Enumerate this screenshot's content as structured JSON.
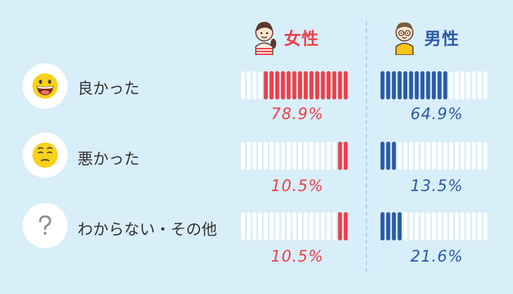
{
  "groups": {
    "female": {
      "label": "女性",
      "color": "#ee3f48",
      "icon": "girl-icon"
    },
    "male": {
      "label": "男性",
      "color": "#2b5ba6",
      "icon": "boy-icon"
    }
  },
  "colors": {
    "background": "#d8eef8",
    "empty_bar": "#ffffff"
  },
  "rows": [
    {
      "label": "良かった",
      "icon": "grinning-face-icon"
    },
    {
      "label": "悪かった",
      "icon": "worried-face-icon"
    },
    {
      "label": "わからない・その他",
      "icon": "question-mark-icon"
    }
  ],
  "chart_data": {
    "type": "bar",
    "categories": [
      "良かった",
      "悪かった",
      "わからない・その他"
    ],
    "series": [
      {
        "name": "女性",
        "values": [
          78.9,
          10.5,
          10.5
        ],
        "labels": [
          "78.9%",
          "10.5%",
          "10.5%"
        ]
      },
      {
        "name": "男性",
        "values": [
          64.9,
          13.5,
          21.6
        ],
        "labels": [
          "64.9%",
          "13.5%",
          "21.6%"
        ]
      }
    ],
    "unit": "%",
    "ylim": [
      0,
      100
    ],
    "segments_per_bar": 19
  }
}
